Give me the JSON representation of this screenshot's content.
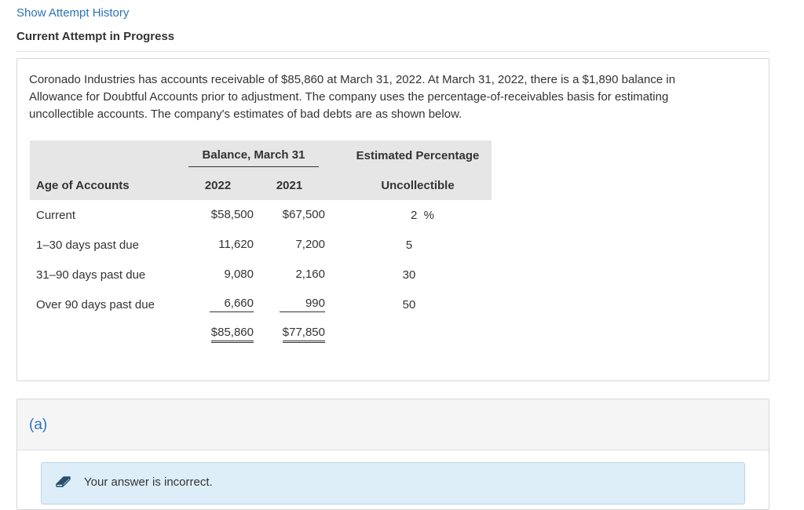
{
  "nav": {
    "show_attempt_history": "Show Attempt History",
    "current_attempt": "Current Attempt in Progress"
  },
  "problem": {
    "text": "Coronado Industries has accounts receivable of $85,860 at March 31, 2022. At March 31, 2022, there is a $1,890 balance in Allowance for Doubtful Accounts prior to adjustment. The company uses the percentage-of-receivables basis for estimating uncollectible accounts. The company's estimates of bad debts are as shown below."
  },
  "table": {
    "group_header": "Balance, March 31",
    "pct_header_1": "Estimated Percentage",
    "col_age": "Age of Accounts",
    "col_2022": "2022",
    "col_2021": "2021",
    "pct_header_2": "Uncollectible",
    "rows": [
      {
        "age": "Current",
        "y2022": "$58,500",
        "y2021": "$67,500",
        "pct": "2",
        "pct_unit": "%"
      },
      {
        "age": "1–30 days past due",
        "y2022": "11,620",
        "y2021": "7,200",
        "pct": "5"
      },
      {
        "age": "31–90 days past due",
        "y2022": "9,080",
        "y2021": "2,160",
        "pct": "30"
      },
      {
        "age": "Over 90 days past due",
        "y2022": "6,660",
        "y2021": "990",
        "pct": "50"
      }
    ],
    "total_2022": "$85,860",
    "total_2021": "$77,850"
  },
  "part": {
    "label": "(a)",
    "feedback": "Your answer is incorrect.",
    "feedback_icon": "eraser-icon"
  }
}
